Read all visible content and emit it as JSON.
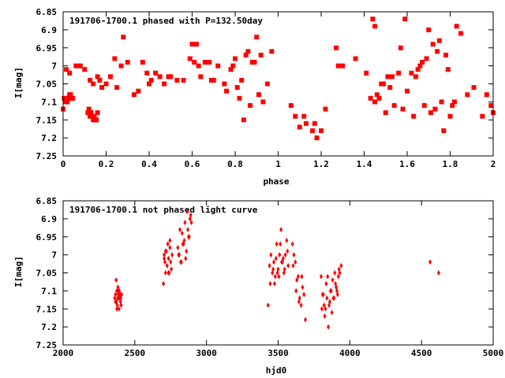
{
  "chart_data": [
    {
      "type": "scatter",
      "title": "191706-1700.1 phased with P=132.50day",
      "xlabel": "phase",
      "ylabel": "I[mag]",
      "xlim": [
        0,
        2
      ],
      "ylim": [
        6.85,
        7.25
      ],
      "y_inverted": true,
      "grid": false,
      "xticks": [
        "0",
        "0.2",
        "0.4",
        "0.6",
        "0.8",
        "1",
        "1.2",
        "1.4",
        "1.6",
        "1.8",
        "2"
      ],
      "yticks": [
        "6.85",
        "6.9",
        "6.95",
        "7",
        "7.05",
        "7.1",
        "7.15",
        "7.2",
        "7.25"
      ],
      "color": "#ff0000",
      "marker": "filled-square",
      "x": [
        0.0,
        0.005,
        0.01,
        0.015,
        0.02,
        0.025,
        0.03,
        0.035,
        0.04,
        0.045,
        0.015,
        0.03,
        0.06,
        0.08,
        0.1,
        0.12,
        0.115,
        0.12,
        0.125,
        0.13,
        0.135,
        0.14,
        0.145,
        0.15,
        0.155,
        0.16,
        0.125,
        0.14,
        0.16,
        0.17,
        0.18,
        0.2,
        0.22,
        0.24,
        0.25,
        0.27,
        0.28,
        0.3,
        0.33,
        0.35,
        0.37,
        0.39,
        0.4,
        0.41,
        0.43,
        0.45,
        0.47,
        0.49,
        0.5,
        0.53,
        0.56,
        0.59,
        0.6,
        0.61,
        0.62,
        0.63,
        0.64,
        0.66,
        0.68,
        0.69,
        0.7,
        0.72,
        0.75,
        0.76,
        0.78,
        0.79,
        0.8,
        0.81,
        0.82,
        0.83,
        0.84,
        0.85,
        0.86,
        0.87,
        0.88,
        0.89,
        0.9,
        0.91,
        0.92,
        0.93,
        0.95,
        0.97,
        1.06,
        1.08,
        1.1,
        1.12,
        1.13,
        1.16,
        1.17,
        1.18,
        1.2,
        1.22,
        1.27,
        1.28,
        1.3,
        1.36,
        1.41,
        1.43,
        1.44,
        1.45,
        1.45,
        1.46,
        1.47,
        1.48,
        1.49,
        1.5,
        1.51,
        1.52,
        1.53,
        1.54,
        1.56,
        1.57,
        1.58,
        1.59,
        1.6,
        1.62,
        1.63,
        1.64,
        1.65,
        1.66,
        1.67,
        1.68,
        1.69,
        1.7,
        1.71,
        1.72,
        1.73,
        1.74,
        1.75,
        1.76,
        1.77,
        1.78,
        1.79,
        1.8,
        1.81,
        1.82,
        1.83,
        1.85,
        1.88,
        1.91,
        1.95,
        1.97,
        1.99,
        2.0
      ],
      "y": [
        7.12,
        7.09,
        7.1,
        7.09,
        7.1,
        7.09,
        7.08,
        7.08,
        7.09,
        7.09,
        7.01,
        7.02,
        7.0,
        7.0,
        7.01,
        7.12,
        7.13,
        7.13,
        7.14,
        7.13,
        7.14,
        7.15,
        7.14,
        7.15,
        7.15,
        7.13,
        7.04,
        7.05,
        7.03,
        7.04,
        7.06,
        7.05,
        7.03,
        6.98,
        7.06,
        7.0,
        6.92,
        6.99,
        7.08,
        7.07,
        6.99,
        7.02,
        7.05,
        7.04,
        7.02,
        7.03,
        7.05,
        7.03,
        7.03,
        7.04,
        7.04,
        6.98,
        6.94,
        6.99,
        6.94,
        7.0,
        7.03,
        6.99,
        6.99,
        7.04,
        7.04,
        7.0,
        7.05,
        7.07,
        7.01,
        7.0,
        6.98,
        7.06,
        7.09,
        7.04,
        7.15,
        6.97,
        6.96,
        7.11,
        6.99,
        6.99,
        6.92,
        7.08,
        6.97,
        7.1,
        7.05,
        6.96,
        7.11,
        7.14,
        7.17,
        7.14,
        7.16,
        7.18,
        7.16,
        7.2,
        7.18,
        7.12,
        6.95,
        7.0,
        7.0,
        6.98,
        7.02,
        7.09,
        6.87,
        7.1,
        6.89,
        7.08,
        7.09,
        7.05,
        7.05,
        7.13,
        7.03,
        7.06,
        7.03,
        7.11,
        7.02,
        6.95,
        7.12,
        6.87,
        7.07,
        7.02,
        7.14,
        7.03,
        7.01,
        7.0,
        6.99,
        7.11,
        6.98,
        6.9,
        7.13,
        6.94,
        7.12,
        6.96,
        6.93,
        7.1,
        7.18,
        6.97,
        7.01,
        7.14,
        7.11,
        7.1,
        6.89,
        6.91,
        7.08,
        7.06,
        7.14,
        7.08,
        7.11,
        7.13
      ]
    },
    {
      "type": "scatter",
      "title": "191706-1700.1 not phased light curve",
      "xlabel": "hjd0",
      "ylabel": "I[mag]",
      "xlim": [
        2000,
        5000
      ],
      "ylim": [
        6.85,
        7.25
      ],
      "y_inverted": true,
      "grid": false,
      "xticks": [
        "2000",
        "2500",
        "3000",
        "3500",
        "4000",
        "4500",
        "5000"
      ],
      "yticks": [
        "6.85",
        "6.9",
        "6.95",
        "7",
        "7.05",
        "7.1",
        "7.15",
        "7.2",
        "7.25"
      ],
      "color": "#ff0000",
      "marker": "filled-diamond",
      "x": [
        2360,
        2365,
        2370,
        2372,
        2375,
        2378,
        2380,
        2382,
        2385,
        2388,
        2390,
        2392,
        2395,
        2398,
        2400,
        2402,
        2405,
        2408,
        2365,
        2375,
        2385,
        2395,
        2700,
        2705,
        2710,
        2715,
        2720,
        2725,
        2730,
        2735,
        2740,
        2745,
        2750,
        2755,
        2760,
        2705,
        2715,
        2725,
        2735,
        2745,
        2800,
        2810,
        2820,
        2830,
        2840,
        2850,
        2860,
        2870,
        2880,
        2890,
        2895,
        2805,
        2825,
        2845,
        2865,
        2885,
        2815,
        2835,
        2855,
        2875,
        3430,
        3440,
        3450,
        3460,
        3470,
        3480,
        3490,
        3500,
        3510,
        3520,
        3530,
        3540,
        3550,
        3560,
        3570,
        3445,
        3465,
        3485,
        3505,
        3525,
        3545,
        3565,
        3475,
        3495,
        3515,
        3535,
        3600,
        3610,
        3620,
        3630,
        3640,
        3650,
        3660,
        3670,
        3680,
        3690,
        3605,
        3625,
        3645,
        3665,
        3800,
        3810,
        3820,
        3830,
        3840,
        3850,
        3860,
        3870,
        3880,
        3890,
        3900,
        3910,
        3920,
        3930,
        3940,
        3805,
        3825,
        3845,
        3865,
        3885,
        3905,
        3925,
        3815,
        3835,
        3855,
        3875,
        3895,
        3915,
        4560,
        4620
      ],
      "y": [
        7.12,
        7.11,
        7.07,
        7.13,
        7.1,
        7.14,
        7.12,
        7.09,
        7.11,
        7.12,
        7.15,
        7.1,
        7.12,
        7.11,
        7.13,
        7.12,
        7.14,
        7.11,
        7.13,
        7.15,
        7.1,
        7.12,
        7.08,
        7.0,
        7.02,
        7.05,
        6.99,
        7.03,
        6.97,
        7.01,
        7.05,
        6.98,
        7.02,
        7.04,
        7.0,
        7.01,
        6.99,
        7.03,
        7.05,
        6.96,
        6.98,
        7.0,
        7.02,
        6.94,
        6.97,
        6.91,
        6.99,
        6.93,
        6.95,
        6.89,
        6.91,
        7.0,
        7.02,
        6.96,
        6.88,
        6.9,
        6.93,
        6.97,
        7.01,
        6.95,
        7.14,
        7.03,
        7.0,
        7.05,
        7.02,
        7.06,
        6.97,
        7.04,
        7.0,
        6.93,
        7.02,
        7.05,
        7.0,
        6.96,
        7.03,
        7.08,
        7.04,
        7.01,
        7.06,
        7.02,
        7.04,
        6.99,
        7.08,
        7.05,
        6.97,
        7.01,
        6.97,
        7.0,
        7.02,
        7.07,
        7.06,
        7.12,
        7.14,
        7.09,
        7.11,
        7.18,
        7.03,
        7.1,
        7.13,
        7.06,
        7.06,
        7.11,
        7.14,
        7.15,
        7.12,
        7.2,
        7.13,
        7.1,
        7.07,
        7.12,
        7.08,
        7.1,
        7.06,
        7.05,
        7.03,
        7.15,
        7.17,
        7.06,
        7.1,
        7.12,
        7.09,
        7.04,
        7.11,
        7.08,
        7.14,
        7.16,
        7.05,
        7.11,
        7.02,
        7.05
      ]
    }
  ]
}
